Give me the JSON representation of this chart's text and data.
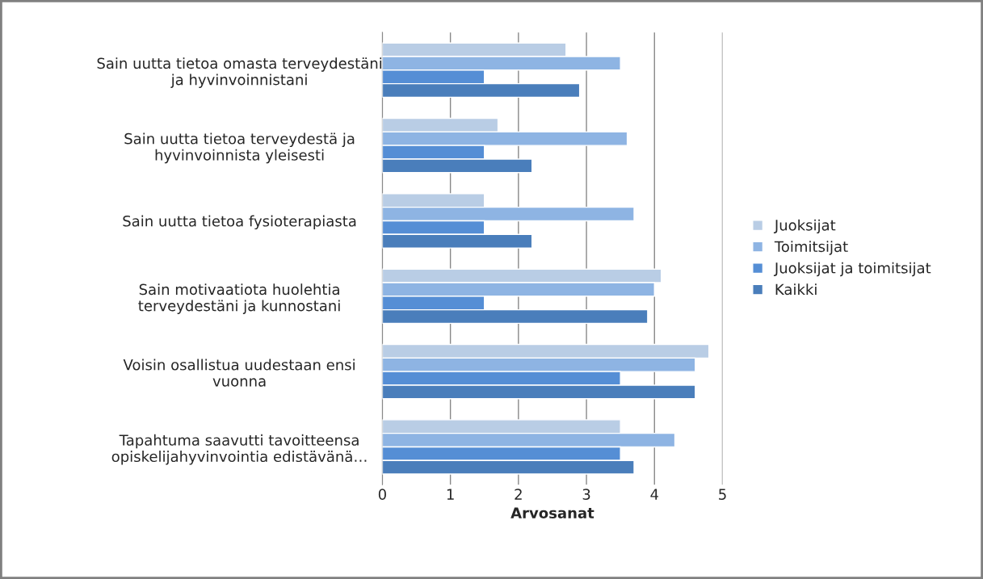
{
  "chart_data": {
    "type": "bar",
    "orientation": "horizontal",
    "categories": [
      "Sain uutta tietoa omasta terveydestäni\nja hyvinvoinnistani",
      "Sain uutta tietoa terveydestä ja\nhyvinvoinnista yleisesti",
      "Sain uutta tietoa fysioterapiasta",
      "Sain motivaatiota huolehtia\nterveydestäni ja kunnostani",
      "Voisin osallistua uudestaan ensi\nvuonna",
      "Tapahtuma saavutti tavoitteensa\nopiskelijahyvinvointia edistävänä…"
    ],
    "series": [
      {
        "name": "Juoksijat",
        "color": "#b9cde5",
        "values": [
          2.7,
          1.7,
          1.5,
          4.1,
          4.8,
          3.5
        ]
      },
      {
        "name": "Toimitsijat",
        "color": "#8eb4e3",
        "values": [
          3.5,
          3.6,
          3.7,
          4.0,
          4.6,
          4.3
        ]
      },
      {
        "name": "Juoksijat ja toimitsijat",
        "color": "#558ed5",
        "values": [
          1.5,
          1.5,
          1.5,
          1.5,
          3.5,
          3.5
        ]
      },
      {
        "name": "Kaikki",
        "color": "#4a7ebb",
        "values": [
          2.9,
          2.2,
          2.2,
          3.9,
          4.6,
          3.7
        ]
      }
    ],
    "xlabel": "Arvosanat",
    "xlim": [
      0,
      5
    ],
    "xticks": [
      0,
      1,
      2,
      3,
      4,
      5
    ],
    "grid": "x",
    "legend": "right"
  }
}
